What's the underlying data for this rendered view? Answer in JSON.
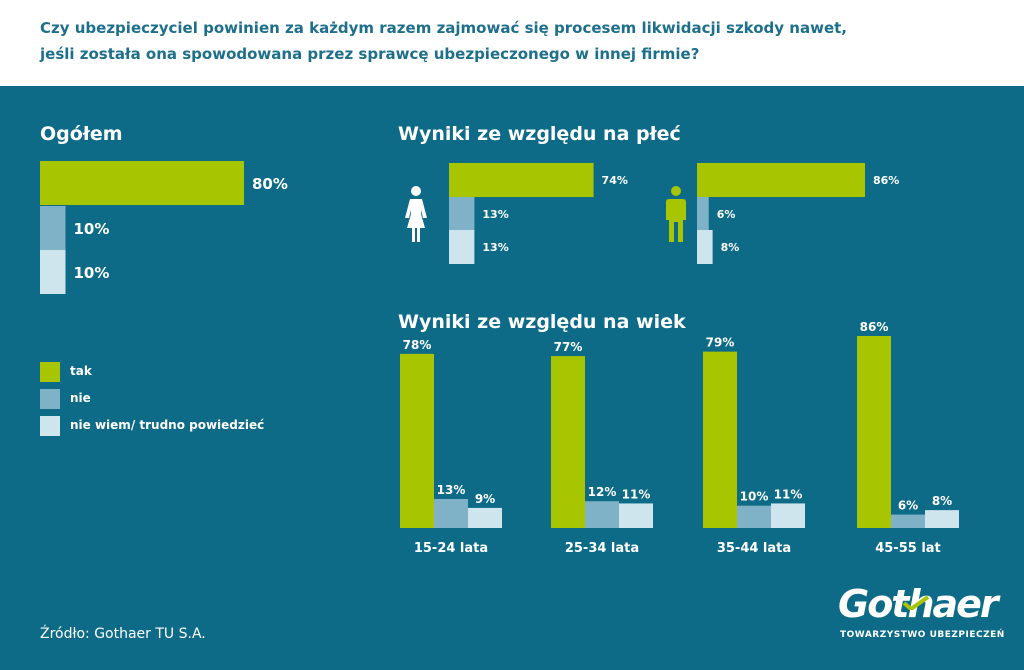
{
  "question": {
    "line1": "Czy ubezpieczyciel powinien za każdym razem zajmować się procesem likwidacji szkody nawet,",
    "line2": "jeśli została ona spowodowana przez sprawcę ubezpieczonego w innej firmie?"
  },
  "colors": {
    "tak": "#a7c500",
    "nie": "#7fb2c6",
    "nie_wiem": "#cfe5ee",
    "panel": "#0d6b88"
  },
  "legend": {
    "tak": "tak",
    "nie": "nie",
    "nie_wiem": "nie wiem/ trudno powiedzieć"
  },
  "source": "Źródło: Gothaer TU S.A.",
  "logo": {
    "word": "Gothaer",
    "sub": "TOWARZYSTWO UBEZPIECZEŃ"
  },
  "chart_data": [
    {
      "type": "bar",
      "title": "Ogółem",
      "orientation": "horizontal",
      "categories": [
        "tak",
        "nie",
        "nie wiem/ trudno powiedzieć"
      ],
      "values": [
        80,
        10,
        10
      ],
      "labels": [
        "80%",
        "10%",
        "10%"
      ]
    },
    {
      "type": "bar",
      "title": "Wyniki ze względu na płeć",
      "orientation": "horizontal",
      "groups": [
        {
          "name": "female-icon",
          "values": [
            74,
            13,
            13
          ],
          "labels": [
            "74%",
            "13%",
            "13%"
          ]
        },
        {
          "name": "male-icon",
          "values": [
            86,
            6,
            8
          ],
          "labels": [
            "86%",
            "6%",
            "8%"
          ]
        }
      ],
      "categories": [
        "tak",
        "nie",
        "nie wiem/ trudno powiedzieć"
      ]
    },
    {
      "type": "bar",
      "title": "Wyniki ze względu na wiek",
      "orientation": "vertical",
      "categories": [
        "15-24 lata",
        "25-34 lata",
        "35-44 lata",
        "45-55 lat"
      ],
      "series": [
        {
          "name": "tak",
          "values": [
            78,
            77,
            79,
            86
          ],
          "labels": [
            "78%",
            "77%",
            "79%",
            "86%"
          ]
        },
        {
          "name": "nie",
          "values": [
            13,
            12,
            10,
            6
          ],
          "labels": [
            "13%",
            "12%",
            "10%",
            "6%"
          ]
        },
        {
          "name": "nie wiem/ trudno powiedzieć",
          "values": [
            9,
            11,
            11,
            8
          ],
          "labels": [
            "9%",
            "11%",
            "11%",
            "8%"
          ]
        }
      ]
    }
  ]
}
